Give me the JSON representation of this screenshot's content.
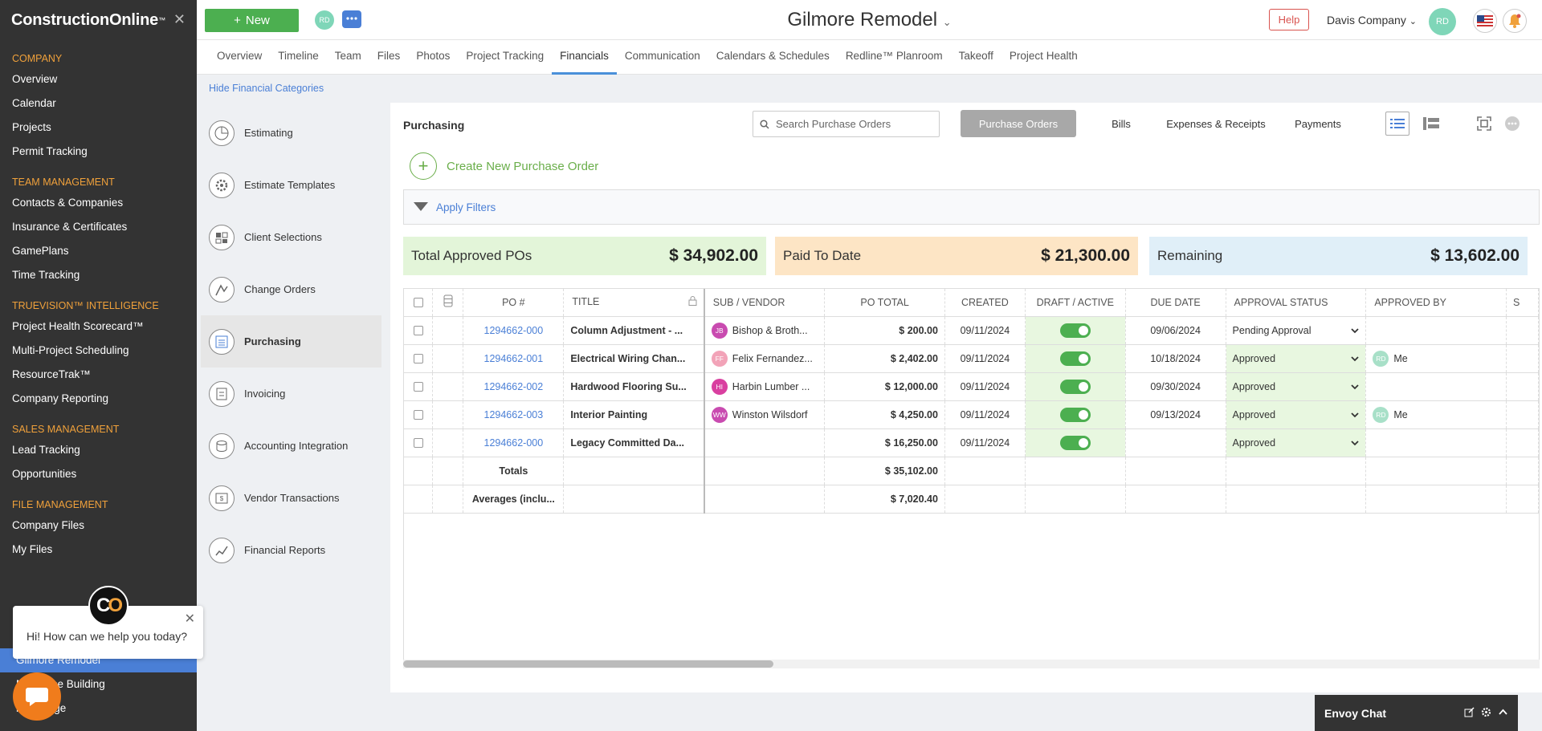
{
  "sidebar": {
    "brand": "ConstructionOnline",
    "brand_tm": "™",
    "close": "✕",
    "sections": [
      {
        "title": "COMPANY",
        "items": [
          "Overview",
          "Calendar",
          "Projects",
          "Permit Tracking"
        ]
      },
      {
        "title": "TEAM MANAGEMENT",
        "items": [
          "Contacts & Companies",
          "Insurance & Certificates",
          "GamePlans",
          "Time Tracking"
        ]
      },
      {
        "title": "TRUEVISION™ INTELLIGENCE",
        "items": [
          "Project Health Scorecard™",
          "Multi-Project Scheduling",
          "ResourceTrak™",
          "Company Reporting"
        ]
      },
      {
        "title": "SALES MANAGEMENT",
        "items": [
          "Lead Tracking",
          "Opportunities"
        ]
      },
      {
        "title": "FILE MANAGEMENT",
        "items": [
          "Company Files",
          "My Files"
        ]
      }
    ],
    "projects": [
      "Gilmore Remodel",
      "Mill Office Building",
      "m Cottage"
    ]
  },
  "chat": {
    "message": "Hi! How can we help you today?",
    "close": "✕",
    "logo_c": "C",
    "logo_o": "O"
  },
  "topbar": {
    "new_label": "New",
    "avatar": "RD",
    "project_title": "Gilmore Remodel",
    "help": "Help",
    "company": "Davis Company",
    "company_avatar": "RD"
  },
  "tabs": [
    "Overview",
    "Timeline",
    "Team",
    "Files",
    "Photos",
    "Project Tracking",
    "Financials",
    "Communication",
    "Calendars & Schedules",
    "Redline™ Planroom",
    "Takeoff",
    "Project Health"
  ],
  "active_tab": "Financials",
  "hide_categories": "Hide Financial Categories",
  "categories": [
    {
      "label": "Estimating",
      "icon": "estimating-icon"
    },
    {
      "label": "Estimate Templates",
      "icon": "templates-gear-icon"
    },
    {
      "label": "Client Selections",
      "icon": "client-selections-icon"
    },
    {
      "label": "Change Orders",
      "icon": "change-orders-icon"
    },
    {
      "label": "Purchasing",
      "icon": "purchasing-icon"
    },
    {
      "label": "Invoicing",
      "icon": "invoicing-icon"
    },
    {
      "label": "Accounting Integration",
      "icon": "accounting-icon"
    },
    {
      "label": "Vendor Transactions",
      "icon": "vendor-transactions-icon"
    },
    {
      "label": "Financial Reports",
      "icon": "financial-reports-icon"
    }
  ],
  "active_category": "Purchasing",
  "panel": {
    "title": "Purchasing",
    "search_placeholder": "Search Purchase Orders",
    "views": [
      "Purchase Orders",
      "Bills",
      "Expenses & Receipts",
      "Payments"
    ],
    "create_label": "Create New Purchase Order",
    "filters_label": "Apply Filters",
    "summary": [
      {
        "label": "Total Approved POs",
        "amount": "$ 34,902.00",
        "color": "#e3f5d9"
      },
      {
        "label": "Paid To Date",
        "amount": "$ 21,300.00",
        "color": "#fde5c5"
      },
      {
        "label": "Remaining",
        "amount": "$ 13,602.00",
        "color": "#e0eff8"
      }
    ]
  },
  "table": {
    "headers": [
      "PO #",
      "TITLE",
      "SUB / VENDOR",
      "PO TOTAL",
      "CREATED",
      "DRAFT / ACTIVE",
      "DUE DATE",
      "APPROVAL STATUS",
      "APPROVED BY",
      "S"
    ],
    "rows": [
      {
        "po": "1294662-000",
        "title": "Column Adjustment - ...",
        "vendor_initials": "JB",
        "vendor_color": "#c94bb0",
        "vendor": "Bishop & Broth...",
        "total": "$ 200.00",
        "created": "09/11/2024",
        "due": "09/06/2024",
        "status": "Pending Approval",
        "approved_by": "",
        "approver_avatar": ""
      },
      {
        "po": "1294662-001",
        "title": "Electrical Wiring Chan...",
        "vendor_initials": "FF",
        "vendor_color": "#f2a3b8",
        "vendor": "Felix Fernandez...",
        "total": "$ 2,402.00",
        "created": "09/11/2024",
        "due": "10/18/2024",
        "status": "Approved",
        "approved_by": "Me",
        "approver_avatar": "RD"
      },
      {
        "po": "1294662-002",
        "title": "Hardwood Flooring Su...",
        "vendor_initials": "HI",
        "vendor_color": "#d93fa0",
        "vendor": "Harbin Lumber ...",
        "total": "$ 12,000.00",
        "created": "09/11/2024",
        "due": "09/30/2024",
        "status": "Approved",
        "approved_by": "",
        "approver_avatar": ""
      },
      {
        "po": "1294662-003",
        "title": "Interior Painting",
        "vendor_initials": "WW",
        "vendor_color": "#c94bb0",
        "vendor": "Winston Wilsdorf",
        "total": "$ 4,250.00",
        "created": "09/11/2024",
        "due": "09/13/2024",
        "status": "Approved",
        "approved_by": "Me",
        "approver_avatar": "RD"
      },
      {
        "po": "1294662-000",
        "title": "Legacy Committed Da...",
        "vendor_initials": "",
        "vendor_color": "",
        "vendor": "",
        "total": "$ 16,250.00",
        "created": "09/11/2024",
        "due": "",
        "status": "Approved",
        "approved_by": "",
        "approver_avatar": ""
      }
    ],
    "totals_label": "Totals",
    "totals_value": "$ 35,102.00",
    "averages_label": "Averages (inclu...",
    "averages_value": "$ 7,020.40"
  },
  "envoy": {
    "label": "Envoy Chat"
  },
  "colors": {
    "accent": "#4a7fd6",
    "green": "#4caf50",
    "orange": "#f0a13b",
    "sidebar": "#333333"
  }
}
